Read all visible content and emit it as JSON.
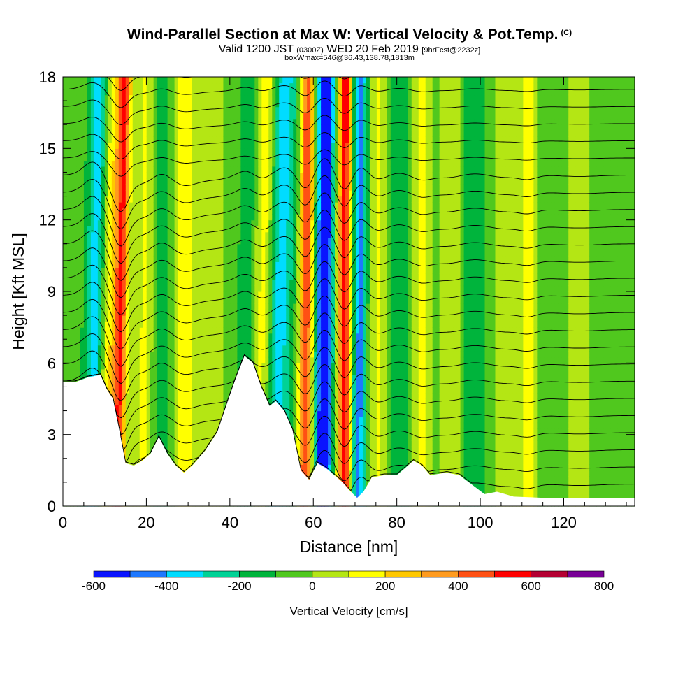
{
  "header": {
    "title": "Wind-Parallel Section at Max W: Vertical Velocity & Pot.Temp.",
    "copyright": "(C)",
    "valid_prefix": "Valid 1200 JST",
    "valid_utc": "(0300Z)",
    "valid_date": "WED 20 Feb 2019",
    "forecast": "[9hrFcst@2232z]",
    "box_info": "boxWmax=546@36.43,138.78,1813m"
  },
  "chart_data": {
    "type": "heatmap",
    "xlabel": "Distance [nm]",
    "ylabel": "Height [Kft MSL]",
    "xlim": [
      0,
      137
    ],
    "ylim": [
      0,
      18
    ],
    "xticks": [
      0,
      20,
      40,
      60,
      80,
      100,
      120
    ],
    "yticks": [
      0,
      3,
      6,
      9,
      12,
      15,
      18
    ],
    "colorbar": {
      "label": "Vertical Velocity [cm/s]",
      "tick_values": [
        -600,
        -400,
        -200,
        0,
        200,
        400,
        600,
        800
      ],
      "levels": [
        -600,
        -500,
        -400,
        -300,
        -200,
        -100,
        0,
        100,
        200,
        300,
        400,
        500,
        600,
        700,
        800
      ],
      "colors": [
        "#0a14ff",
        "#1e78ff",
        "#00dcff",
        "#00d296",
        "#00b43c",
        "#50c81e",
        "#b4e614",
        "#ffff00",
        "#ffc800",
        "#ff9b1e",
        "#ff5014",
        "#ff0000",
        "#b40032",
        "#780096"
      ]
    },
    "terrain_kft": [
      [
        0,
        5.2
      ],
      [
        3,
        5.2
      ],
      [
        6,
        5.4
      ],
      [
        9,
        5.5
      ],
      [
        10.5,
        4.9
      ],
      [
        12,
        4.5
      ],
      [
        13.5,
        3.2
      ],
      [
        15,
        1.8
      ],
      [
        17,
        1.7
      ],
      [
        19,
        1.9
      ],
      [
        21,
        2.2
      ],
      [
        23,
        2.9
      ],
      [
        25,
        2.2
      ],
      [
        27,
        1.7
      ],
      [
        29,
        1.4
      ],
      [
        31,
        1.7
      ],
      [
        34,
        2.3
      ],
      [
        37,
        3.1
      ],
      [
        39.5,
        4.4
      ],
      [
        41.5,
        5.4
      ],
      [
        43.5,
        6.3
      ],
      [
        45.5,
        6.0
      ],
      [
        47.5,
        5.0
      ],
      [
        49.5,
        4.2
      ],
      [
        51,
        4.4
      ],
      [
        53,
        4.0
      ],
      [
        55,
        3.2
      ],
      [
        57,
        1.5
      ],
      [
        59,
        1.1
      ],
      [
        61,
        1.8
      ],
      [
        63,
        1.6
      ],
      [
        65,
        1.3
      ],
      [
        67,
        1.0
      ],
      [
        69,
        0.6
      ],
      [
        70.5,
        0.35
      ],
      [
        72,
        0.6
      ],
      [
        74,
        1.2
      ],
      [
        77,
        1.3
      ],
      [
        80,
        1.3
      ],
      [
        84,
        1.9
      ],
      [
        86,
        1.7
      ],
      [
        88,
        1.3
      ],
      [
        92,
        1.4
      ],
      [
        95,
        1.3
      ],
      [
        98,
        0.9
      ],
      [
        101,
        0.5
      ],
      [
        104,
        0.6
      ],
      [
        108,
        0.4
      ],
      [
        115,
        0.35
      ],
      [
        137,
        0.35
      ]
    ],
    "w_field_cm_s": {
      "background_cm_s": -60,
      "bands": [
        {
          "x": 8.0,
          "width": 2.2,
          "w": -350,
          "tilt": 0.12
        },
        {
          "x": 11.0,
          "width": 2.6,
          "w": 250,
          "tilt": 0.1
        },
        {
          "x": 14.0,
          "width": 1.6,
          "w": 520,
          "tilt": 0.1
        },
        {
          "x": 19.5,
          "width": 2.6,
          "w": 170,
          "tilt": 0.05
        },
        {
          "x": 23.5,
          "width": 2.0,
          "w": -120,
          "tilt": 0.02
        },
        {
          "x": 29.0,
          "width": 2.6,
          "w": 210,
          "tilt": 0.0
        },
        {
          "x": 36.0,
          "width": 3.5,
          "w": 110,
          "tilt": 0.0
        },
        {
          "x": 44.0,
          "width": 1.8,
          "w": -140,
          "tilt": 0.05
        },
        {
          "x": 48.5,
          "width": 2.4,
          "w": 320,
          "tilt": 0.1
        },
        {
          "x": 51.5,
          "width": 3.5,
          "w": -330,
          "tilt": 0.15
        },
        {
          "x": 58.3,
          "width": 1.7,
          "w": 560,
          "tilt": 0.05
        },
        {
          "x": 62.7,
          "width": 2.0,
          "w": -610,
          "tilt": 0.04
        },
        {
          "x": 67.5,
          "width": 1.7,
          "w": 620,
          "tilt": 0.02
        },
        {
          "x": 71.0,
          "width": 1.7,
          "w": -380,
          "tilt": 0.02
        },
        {
          "x": 75.5,
          "width": 2.0,
          "w": 180,
          "tilt": 0.0
        },
        {
          "x": 80.5,
          "width": 2.4,
          "w": -100,
          "tilt": 0.0
        },
        {
          "x": 86.0,
          "width": 2.0,
          "w": 210,
          "tilt": 0.0
        },
        {
          "x": 93.0,
          "width": 3.0,
          "w": 140,
          "tilt": 0.0
        },
        {
          "x": 98.0,
          "width": 3.0,
          "w": -110,
          "tilt": 0.0
        },
        {
          "x": 106.0,
          "width": 3.0,
          "w": 130,
          "tilt": 0.0
        },
        {
          "x": 111.5,
          "width": 1.8,
          "w": 220,
          "tilt": 0.0
        },
        {
          "x": 124.0,
          "width": 4.0,
          "w": 90,
          "tilt": 0.0
        }
      ]
    },
    "theta_contours": {
      "levels": [
        1,
        2,
        3,
        4,
        5,
        6,
        7,
        8,
        9,
        10,
        11,
        12,
        13,
        14,
        15,
        16,
        17,
        18,
        19,
        20,
        21,
        22,
        23,
        24,
        25
      ],
      "wave_amplitude_kft": 1.6,
      "wave_decay_x_nm": 85
    }
  }
}
